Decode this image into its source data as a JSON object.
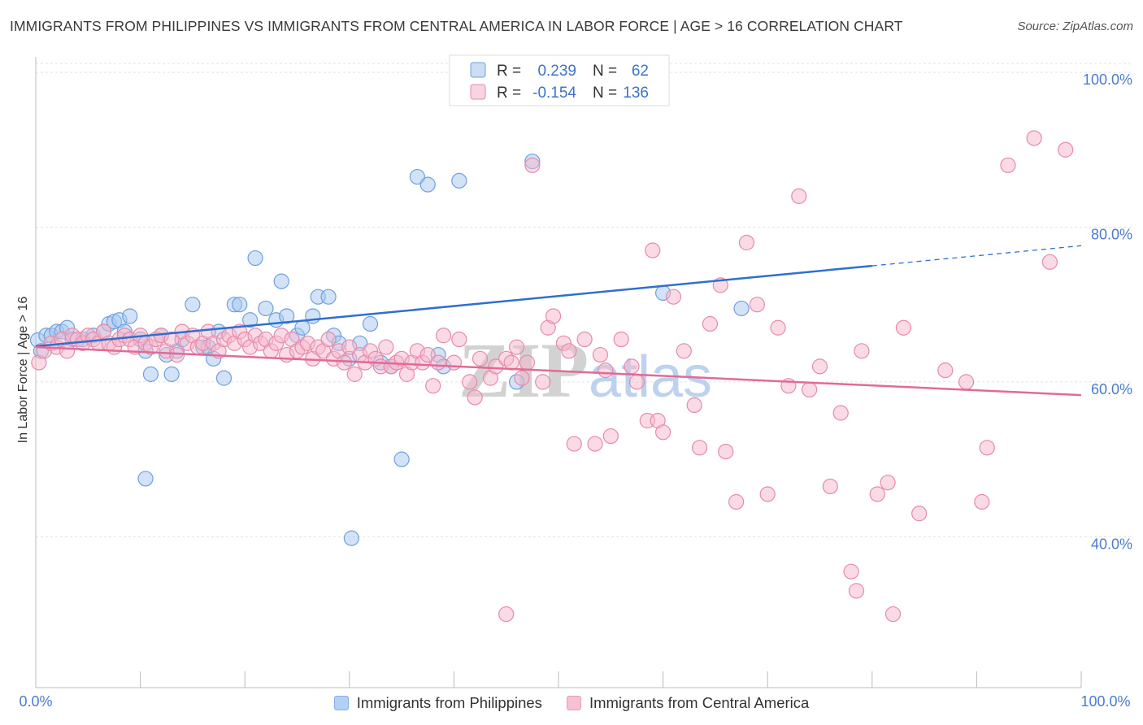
{
  "chart_data": {
    "type": "scatter",
    "title": "IMMIGRANTS FROM PHILIPPINES VS IMMIGRANTS FROM CENTRAL AMERICA IN LABOR FORCE | AGE > 16 CORRELATION CHART",
    "source": "Source: ZipAtlas.com",
    "ylabel": "In Labor Force | Age > 16",
    "xlabel": "",
    "xlim": [
      0,
      100
    ],
    "ylim": [
      20.5,
      102
    ],
    "x_tick_labels": [
      "0.0%",
      "100.0%"
    ],
    "y_ticks": [
      40,
      60,
      80,
      100
    ],
    "y_tick_labels": [
      "40.0%",
      "60.0%",
      "80.0%",
      "100.0%"
    ],
    "watermark": "ZIPatlas",
    "legend": {
      "r_label": "R =",
      "n_label": "N =",
      "entries": [
        {
          "r": "0.239",
          "n": "62"
        },
        {
          "r": "-0.154",
          "n": "136"
        }
      ]
    },
    "series": [
      {
        "name": "Immigrants from Philippines",
        "color": "#a8c8f0",
        "edge": "#6f9fe0",
        "line_color": "#2f6fd0",
        "trend": {
          "x0": 0,
          "y0": 64.6,
          "x1": 80,
          "y1": 75.0,
          "x_dash_end": 100,
          "y_dash_end": 77.6
        },
        "points": [
          [
            0.2,
            65.4
          ],
          [
            0.5,
            64.0
          ],
          [
            1.0,
            66.0
          ],
          [
            1.5,
            66.0
          ],
          [
            2.0,
            66.5
          ],
          [
            2.5,
            66.5
          ],
          [
            3.0,
            67.0
          ],
          [
            3.5,
            65.5
          ],
          [
            4.5,
            65.5
          ],
          [
            5.5,
            66.0
          ],
          [
            6.5,
            66.5
          ],
          [
            7.0,
            67.5
          ],
          [
            7.5,
            67.8
          ],
          [
            8.0,
            68.0
          ],
          [
            8.5,
            66.5
          ],
          [
            9.0,
            68.5
          ],
          [
            10.0,
            65.5
          ],
          [
            10.5,
            64.0
          ],
          [
            11.0,
            61.0
          ],
          [
            12.0,
            66.0
          ],
          [
            12.5,
            63.5
          ],
          [
            13.0,
            61.0
          ],
          [
            13.5,
            64.0
          ],
          [
            14.0,
            65.5
          ],
          [
            15.0,
            70.0
          ],
          [
            16.0,
            64.5
          ],
          [
            16.5,
            64.5
          ],
          [
            17.0,
            63.0
          ],
          [
            17.5,
            66.5
          ],
          [
            18.0,
            60.5
          ],
          [
            19.0,
            70.0
          ],
          [
            19.5,
            70.0
          ],
          [
            20.5,
            68.0
          ],
          [
            21.0,
            76.0
          ],
          [
            22.0,
            69.5
          ],
          [
            23.0,
            68.0
          ],
          [
            23.5,
            73.0
          ],
          [
            24.0,
            68.5
          ],
          [
            25.0,
            66.0
          ],
          [
            25.5,
            67.0
          ],
          [
            26.5,
            68.5
          ],
          [
            27.0,
            71.0
          ],
          [
            28.0,
            71.0
          ],
          [
            28.5,
            66.0
          ],
          [
            29.0,
            65.0
          ],
          [
            30.0,
            63.0
          ],
          [
            31.0,
            65.0
          ],
          [
            32.0,
            67.5
          ],
          [
            33.0,
            62.5
          ],
          [
            34.0,
            62.0
          ],
          [
            35.0,
            50.0
          ],
          [
            36.5,
            86.5
          ],
          [
            37.5,
            85.5
          ],
          [
            38.5,
            63.5
          ],
          [
            39.0,
            62.0
          ],
          [
            40.5,
            86.0
          ],
          [
            10.5,
            47.5
          ],
          [
            30.2,
            39.8
          ],
          [
            47.5,
            88.5
          ],
          [
            60.0,
            71.5
          ],
          [
            67.5,
            69.5
          ],
          [
            46.0,
            60.0
          ]
        ]
      },
      {
        "name": "Immigrants from Central America",
        "color": "#f5b8cc",
        "edge": "#e68aaa",
        "line_color": "#e26a97",
        "trend": {
          "x0": 0,
          "y0": 64.5,
          "x1": 100,
          "y1": 58.3
        },
        "points": [
          [
            0.3,
            62.5
          ],
          [
            0.8,
            64.0
          ],
          [
            1.5,
            65.0
          ],
          [
            2.0,
            64.5
          ],
          [
            2.5,
            65.5
          ],
          [
            3.0,
            64.0
          ],
          [
            3.5,
            66.0
          ],
          [
            4.0,
            65.5
          ],
          [
            4.5,
            65.0
          ],
          [
            5.0,
            66.0
          ],
          [
            5.5,
            65.5
          ],
          [
            6.0,
            65.0
          ],
          [
            6.5,
            66.5
          ],
          [
            7.0,
            65.0
          ],
          [
            7.5,
            64.5
          ],
          [
            8.0,
            65.5
          ],
          [
            8.5,
            66.0
          ],
          [
            9.0,
            65.5
          ],
          [
            9.5,
            64.5
          ],
          [
            10.0,
            66.0
          ],
          [
            10.5,
            65.0
          ],
          [
            11.0,
            64.5
          ],
          [
            11.5,
            65.5
          ],
          [
            12.0,
            66.0
          ],
          [
            12.5,
            64.0
          ],
          [
            13.0,
            65.5
          ],
          [
            13.5,
            63.5
          ],
          [
            14.0,
            66.5
          ],
          [
            14.5,
            65.0
          ],
          [
            15.0,
            66.0
          ],
          [
            15.5,
            64.5
          ],
          [
            16.0,
            65.0
          ],
          [
            16.5,
            66.5
          ],
          [
            17.0,
            65.0
          ],
          [
            17.5,
            64.0
          ],
          [
            18.0,
            65.5
          ],
          [
            18.5,
            66.0
          ],
          [
            19.0,
            65.0
          ],
          [
            19.5,
            66.5
          ],
          [
            20.0,
            65.5
          ],
          [
            20.5,
            64.5
          ],
          [
            21.0,
            66.0
          ],
          [
            21.5,
            65.0
          ],
          [
            22.0,
            65.5
          ],
          [
            22.5,
            64.0
          ],
          [
            23.0,
            65.0
          ],
          [
            23.5,
            66.0
          ],
          [
            24.0,
            63.5
          ],
          [
            24.5,
            65.5
          ],
          [
            25.0,
            64.0
          ],
          [
            25.5,
            64.5
          ],
          [
            26.0,
            65.0
          ],
          [
            26.5,
            63.0
          ],
          [
            27.0,
            64.5
          ],
          [
            27.5,
            64.0
          ],
          [
            28.0,
            65.5
          ],
          [
            28.5,
            63.0
          ],
          [
            29.0,
            64.0
          ],
          [
            29.5,
            62.5
          ],
          [
            30.0,
            64.5
          ],
          [
            30.5,
            61.0
          ],
          [
            31.0,
            63.5
          ],
          [
            31.5,
            62.5
          ],
          [
            32.0,
            64.0
          ],
          [
            32.5,
            63.0
          ],
          [
            33.0,
            62.0
          ],
          [
            33.5,
            64.5
          ],
          [
            34.0,
            62.0
          ],
          [
            34.5,
            62.5
          ],
          [
            35.0,
            63.0
          ],
          [
            35.5,
            61.0
          ],
          [
            36.0,
            62.5
          ],
          [
            36.5,
            64.0
          ],
          [
            37.0,
            62.5
          ],
          [
            37.5,
            63.5
          ],
          [
            38.0,
            59.5
          ],
          [
            38.5,
            62.5
          ],
          [
            39.0,
            66.0
          ],
          [
            40.0,
            62.5
          ],
          [
            40.5,
            65.5
          ],
          [
            41.5,
            60.0
          ],
          [
            42.0,
            58.0
          ],
          [
            42.5,
            63.0
          ],
          [
            43.5,
            60.5
          ],
          [
            44.0,
            62.0
          ],
          [
            45.0,
            63.0
          ],
          [
            45.5,
            62.5
          ],
          [
            46.0,
            64.5
          ],
          [
            46.5,
            60.5
          ],
          [
            47.0,
            62.5
          ],
          [
            48.5,
            60.0
          ],
          [
            49.0,
            67.0
          ],
          [
            49.5,
            68.5
          ],
          [
            50.5,
            65.0
          ],
          [
            51.0,
            64.0
          ],
          [
            51.5,
            52.0
          ],
          [
            52.5,
            65.5
          ],
          [
            53.5,
            52.0
          ],
          [
            54.0,
            63.5
          ],
          [
            54.5,
            61.5
          ],
          [
            55.0,
            53.0
          ],
          [
            56.0,
            65.5
          ],
          [
            57.0,
            62.0
          ],
          [
            57.5,
            60.0
          ],
          [
            58.5,
            55.0
          ],
          [
            59.0,
            77.0
          ],
          [
            59.5,
            55.0
          ],
          [
            60.0,
            53.5
          ],
          [
            61.0,
            71.0
          ],
          [
            62.0,
            64.0
          ],
          [
            63.0,
            57.0
          ],
          [
            63.5,
            51.5
          ],
          [
            64.5,
            67.5
          ],
          [
            65.5,
            72.5
          ],
          [
            66.0,
            51.0
          ],
          [
            67.0,
            44.5
          ],
          [
            68.0,
            78.0
          ],
          [
            69.0,
            70.0
          ],
          [
            70.0,
            45.5
          ],
          [
            71.0,
            67.0
          ],
          [
            72.0,
            59.5
          ],
          [
            73.0,
            84.0
          ],
          [
            74.0,
            59.0
          ],
          [
            75.0,
            62.0
          ],
          [
            76.0,
            46.5
          ],
          [
            77.0,
            56.0
          ],
          [
            78.0,
            35.5
          ],
          [
            78.5,
            33.0
          ],
          [
            79.0,
            64.0
          ],
          [
            80.5,
            45.5
          ],
          [
            81.5,
            47.0
          ],
          [
            82.0,
            30.0
          ],
          [
            83.0,
            67.0
          ],
          [
            84.5,
            43.0
          ],
          [
            87.0,
            61.5
          ],
          [
            89.0,
            60.0
          ],
          [
            90.5,
            44.5
          ],
          [
            91.0,
            51.5
          ],
          [
            93.0,
            88.0
          ],
          [
            95.5,
            91.5
          ],
          [
            97.0,
            75.5
          ],
          [
            98.5,
            90.0
          ],
          [
            45.0,
            30.0
          ],
          [
            47.5,
            88.0
          ]
        ]
      }
    ]
  }
}
